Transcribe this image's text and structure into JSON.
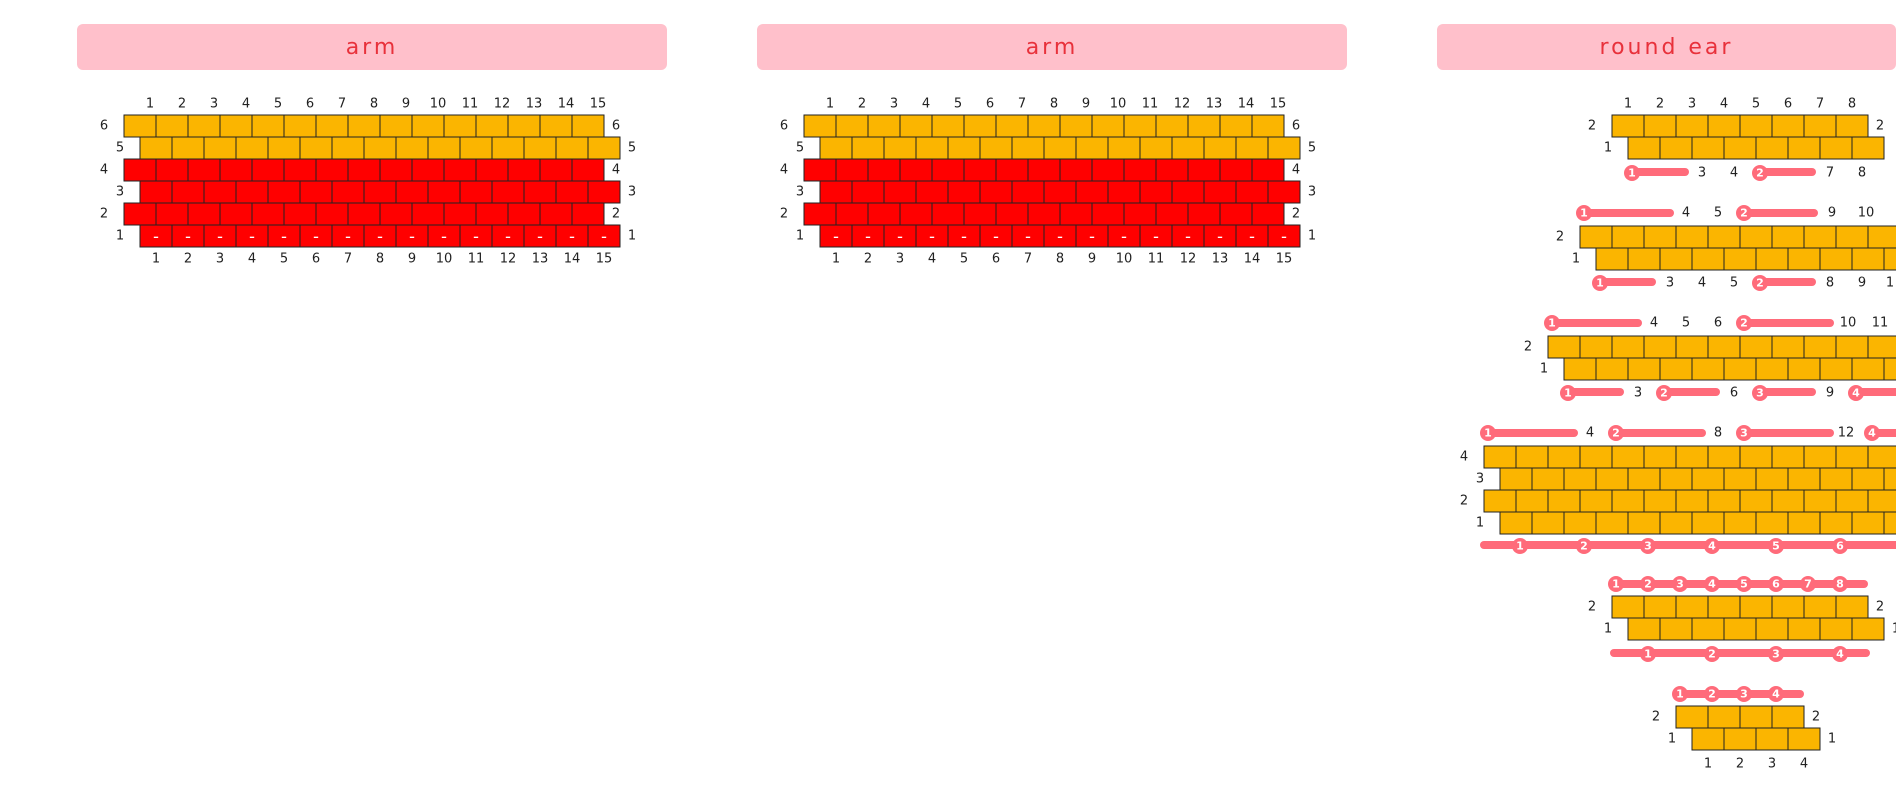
{
  "colors": {
    "header_bg": "#ffc0cb",
    "header_text": "#e8313b",
    "gold": "#fbb500",
    "red": "#ff0000",
    "bar": "#ff6b7a",
    "stroke": "#222222"
  },
  "panels": [
    {
      "title": "arm",
      "left": 77,
      "width": 590
    },
    {
      "title": "arm",
      "left": 757,
      "width": 590
    },
    {
      "title": "round ear",
      "left": 1437,
      "width": 459
    }
  ],
  "arm_row_numbers": [
    "6",
    "5",
    "4",
    "3",
    "2",
    "1"
  ],
  "arm_col_numbers": [
    "1",
    "2",
    "3",
    "4",
    "5",
    "6",
    "7",
    "8",
    "9",
    "10",
    "11",
    "12",
    "13",
    "14",
    "15"
  ],
  "dash_symbol": "–",
  "ear_row_labels": {
    "two": [
      "2",
      "1"
    ],
    "four": [
      "4",
      "3",
      "2",
      "1"
    ]
  },
  "ear_texts": {
    "g1_top": [
      "1",
      "2",
      "3",
      "4",
      "5",
      "6",
      "7",
      "8"
    ],
    "g1_bottom": [
      "3",
      "4",
      "7",
      "8"
    ],
    "g2_top": [
      "4",
      "5",
      "9",
      "10"
    ],
    "g2_bottom": [
      "3",
      "4",
      "5",
      "8",
      "9",
      "1"
    ],
    "g3_top": [
      "4",
      "5",
      "6",
      "10",
      "11"
    ],
    "g3_bottom": [
      "3",
      "6",
      "9"
    ],
    "g4_top": [
      "4",
      "8",
      "12"
    ],
    "g6_bottom": [
      "1",
      "2",
      "3",
      "4"
    ]
  },
  "ear_badges": [
    "1",
    "2",
    "3",
    "4",
    "5",
    "6",
    "7",
    "8"
  ]
}
